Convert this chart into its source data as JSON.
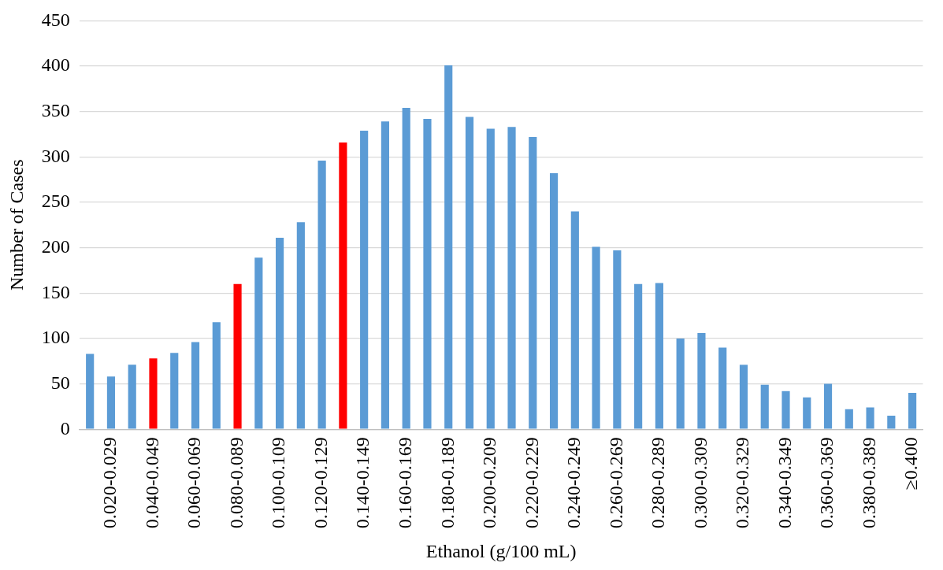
{
  "chart_data": {
    "type": "bar",
    "xlabel": "Ethanol (g/100 mL)",
    "ylabel": "Number of Cases",
    "categories": [
      null,
      "0.020-0.029",
      null,
      "0.040-0.049",
      null,
      "0.060-0.069",
      null,
      "0.080-0.089",
      null,
      "0.100-0.109",
      null,
      "0.120-0.129",
      null,
      "0.140-0.149",
      null,
      "0.160-0.169",
      null,
      "0.180-0.189",
      null,
      "0.200-0.209",
      null,
      "0.220-0.229",
      null,
      "0.240-0.249",
      null,
      "0.260-0.269",
      null,
      "0.280-0.289",
      null,
      "0.300-0.309",
      null,
      "0.320-0.329",
      null,
      "0.340-0.349",
      null,
      "0.360-0.369",
      null,
      "0.380-0.389",
      null,
      "≥0.400"
    ],
    "values": [
      83,
      58,
      71,
      78,
      84,
      96,
      118,
      160,
      189,
      211,
      228,
      296,
      316,
      329,
      339,
      354,
      342,
      401,
      344,
      331,
      333,
      322,
      282,
      240,
      201,
      197,
      160,
      161,
      100,
      106,
      90,
      71,
      49,
      42,
      35,
      50,
      22,
      24,
      15,
      40
    ],
    "colors": [
      "#5b9bd5",
      "#5b9bd5",
      "#5b9bd5",
      "#ff0000",
      "#5b9bd5",
      "#5b9bd5",
      "#5b9bd5",
      "#ff0000",
      "#5b9bd5",
      "#5b9bd5",
      "#5b9bd5",
      "#5b9bd5",
      "#ff0000",
      "#5b9bd5",
      "#5b9bd5",
      "#5b9bd5",
      "#5b9bd5",
      "#5b9bd5",
      "#5b9bd5",
      "#5b9bd5",
      "#5b9bd5",
      "#5b9bd5",
      "#5b9bd5",
      "#5b9bd5",
      "#5b9bd5",
      "#5b9bd5",
      "#5b9bd5",
      "#5b9bd5",
      "#5b9bd5",
      "#5b9bd5",
      "#5b9bd5",
      "#5b9bd5",
      "#5b9bd5",
      "#5b9bd5",
      "#5b9bd5",
      "#5b9bd5",
      "#5b9bd5",
      "#5b9bd5",
      "#5b9bd5",
      "#5b9bd5"
    ],
    "ylim": [
      0,
      450
    ],
    "yticks": [
      0,
      50,
      100,
      150,
      200,
      250,
      300,
      350,
      400,
      450
    ],
    "grid": "y",
    "legend": false
  }
}
